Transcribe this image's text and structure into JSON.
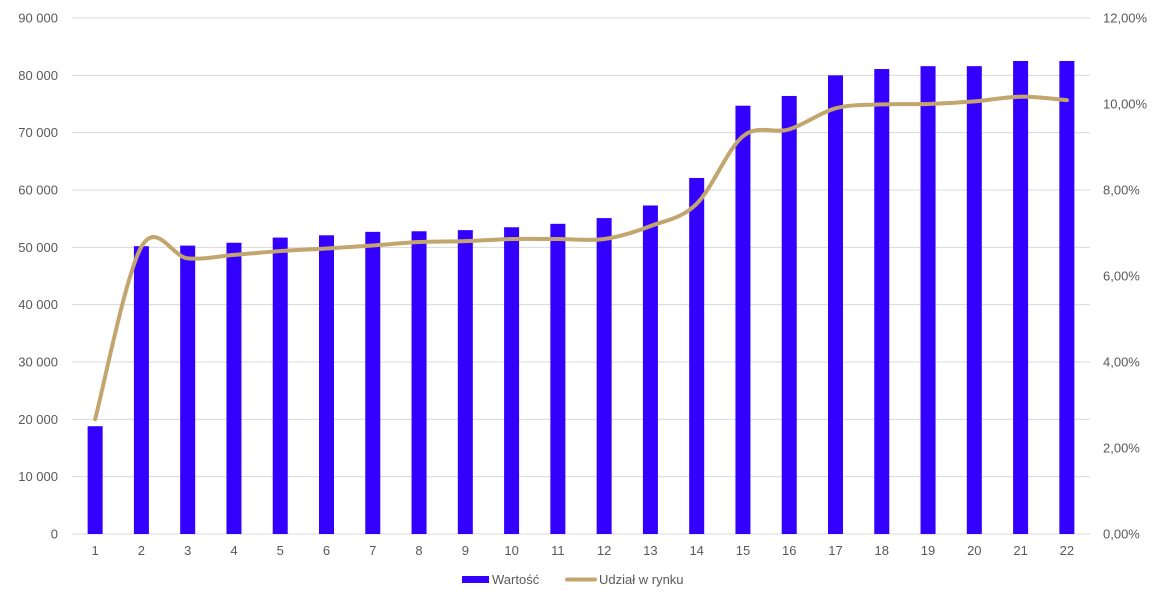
{
  "chart_data": {
    "type": "bar",
    "categories": [
      "1",
      "2",
      "3",
      "4",
      "5",
      "6",
      "7",
      "8",
      "9",
      "10",
      "11",
      "12",
      "13",
      "14",
      "15",
      "16",
      "17",
      "18",
      "19",
      "20",
      "21",
      "22"
    ],
    "series": [
      {
        "name": "Wartość",
        "type": "bar",
        "axis": "left",
        "color": "#3300ff",
        "values": [
          18800,
          50200,
          50300,
          50800,
          51700,
          52100,
          52700,
          52800,
          53000,
          53500,
          54100,
          55100,
          57300,
          62100,
          74700,
          76400,
          80000,
          81100,
          81600,
          81600,
          82500,
          82500
        ]
      },
      {
        "name": "Udział w rynku",
        "type": "line",
        "smooth": true,
        "axis": "right",
        "color": "#c2a66e",
        "values": [
          2.67,
          6.68,
          6.41,
          6.49,
          6.58,
          6.64,
          6.71,
          6.79,
          6.81,
          6.86,
          6.86,
          6.86,
          7.16,
          7.68,
          9.25,
          9.41,
          9.9,
          9.99,
          10.0,
          10.06,
          10.17,
          10.09
        ]
      }
    ],
    "y_left": {
      "min": 0,
      "max": 90000,
      "ticks": [
        0,
        10000,
        20000,
        30000,
        40000,
        50000,
        60000,
        70000,
        80000,
        90000
      ],
      "tick_labels": [
        "0",
        "10 000",
        "20 000",
        "30 000",
        "40 000",
        "50 000",
        "60 000",
        "70 000",
        "80 000",
        "90 000"
      ]
    },
    "y_right": {
      "min": 0,
      "max": 12,
      "ticks": [
        0,
        2,
        4,
        6,
        8,
        10,
        12
      ],
      "tick_labels": [
        "0,00%",
        "2,00%",
        "4,00%",
        "6,00%",
        "8,00%",
        "10,00%",
        "12,00%"
      ]
    },
    "title": "",
    "xlabel": "",
    "ylabel": "",
    "grid": true,
    "legend": "bottom",
    "colors": {
      "gridline": "#d9d9d9",
      "axis_text": "#595959"
    }
  }
}
